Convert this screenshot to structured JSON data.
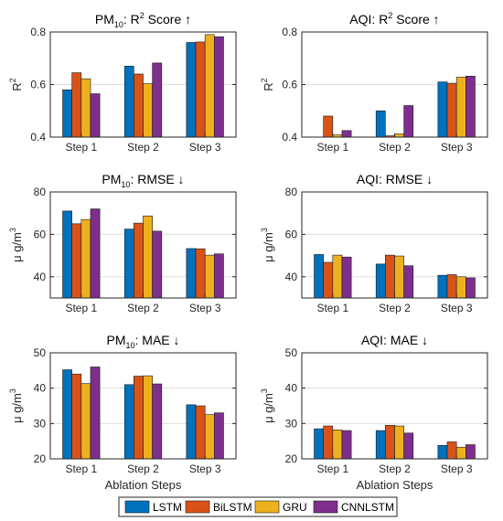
{
  "colors": {
    "LSTM": "#0072BD",
    "BiLSTM": "#D95319",
    "GRU": "#EDB120",
    "CNNLSTM": "#7E2F8E",
    "axis": "#262626",
    "grid": "#262626"
  },
  "legend": {
    "items": [
      "LSTM",
      "BiLSTM",
      "GRU",
      "CNNLSTM"
    ]
  },
  "chart_data": [
    {
      "type": "bar",
      "title": "PM10: R² Score ↑",
      "title_main": "PM",
      "title_sub": "10",
      "title_rest": ": R",
      "title_sup": "2",
      "title_end": " Score ↑",
      "ylabel": "R2",
      "ylabel_main": "R",
      "ylabel_sup": "2",
      "xlabel": "",
      "categories": [
        "Step 1",
        "Step 2",
        "Step 3"
      ],
      "ylim": [
        0.4,
        0.8
      ],
      "yticks": [
        0.4,
        0.6,
        0.8
      ],
      "ytick_labels": [
        "0.4",
        "0.6",
        "0.8"
      ],
      "series": [
        {
          "name": "LSTM",
          "values": [
            0.58,
            0.67,
            0.76
          ]
        },
        {
          "name": "BiLSTM",
          "values": [
            0.645,
            0.64,
            0.762
          ]
        },
        {
          "name": "GRU",
          "values": [
            0.622,
            0.603,
            0.79
          ]
        },
        {
          "name": "CNNLSTM",
          "values": [
            0.565,
            0.682,
            0.782
          ]
        }
      ]
    },
    {
      "type": "bar",
      "title": "AQI: R² Score ↑",
      "title_main": "AQI: R",
      "title_sub": "",
      "title_rest": "",
      "title_sup": "2",
      "title_end": " Score ↑",
      "ylabel": "R2",
      "ylabel_main": "R",
      "ylabel_sup": "2",
      "xlabel": "",
      "categories": [
        "Step 1",
        "Step 2",
        "Step 3"
      ],
      "ylim": [
        0.4,
        0.8
      ],
      "yticks": [
        0.4,
        0.6,
        0.8
      ],
      "ytick_labels": [
        "0.4",
        "0.6",
        "0.8"
      ],
      "series": [
        {
          "name": "LSTM",
          "values": [
            0.4,
            0.5,
            0.61
          ]
        },
        {
          "name": "BiLSTM",
          "values": [
            0.48,
            0.405,
            0.605
          ]
        },
        {
          "name": "GRU",
          "values": [
            0.408,
            0.412,
            0.628
          ]
        },
        {
          "name": "CNNLSTM",
          "values": [
            0.425,
            0.52,
            0.632
          ]
        }
      ]
    },
    {
      "type": "bar",
      "title": "PM10: RMSE ↓",
      "title_main": "PM",
      "title_sub": "10",
      "title_rest": ": RMSE ↓",
      "title_sup": "",
      "title_end": "",
      "ylabel": "μ g/m3",
      "ylabel_main": "μ g/m",
      "ylabel_sup": "3",
      "xlabel": "",
      "categories": [
        "Step 1",
        "Step 2",
        "Step 3"
      ],
      "ylim": [
        30,
        80
      ],
      "yticks": [
        40,
        60,
        80
      ],
      "ytick_labels": [
        "40",
        "60",
        "80"
      ],
      "series": [
        {
          "name": "LSTM",
          "values": [
            71,
            62.5,
            53.3
          ]
        },
        {
          "name": "BiLSTM",
          "values": [
            65,
            65.3,
            53.2
          ]
        },
        {
          "name": "GRU",
          "values": [
            67,
            68.7,
            50.2
          ]
        },
        {
          "name": "CNNLSTM",
          "values": [
            72,
            61.5,
            50.8
          ]
        }
      ]
    },
    {
      "type": "bar",
      "title": "AQI: RMSE ↓",
      "title_main": "AQI: RMSE ↓",
      "title_sub": "",
      "title_rest": "",
      "title_sup": "",
      "title_end": "",
      "ylabel": "μ g/m3",
      "ylabel_main": "μ g/m",
      "ylabel_sup": "3",
      "xlabel": "",
      "categories": [
        "Step 1",
        "Step 2",
        "Step 3"
      ],
      "ylim": [
        30,
        80
      ],
      "yticks": [
        40,
        60,
        80
      ],
      "ytick_labels": [
        "40",
        "60",
        "80"
      ],
      "series": [
        {
          "name": "LSTM",
          "values": [
            50.5,
            46,
            40.7
          ]
        },
        {
          "name": "BiLSTM",
          "values": [
            46.8,
            50.2,
            41
          ]
        },
        {
          "name": "GRU",
          "values": [
            50.2,
            49.8,
            40
          ]
        },
        {
          "name": "CNNLSTM",
          "values": [
            49.3,
            45.2,
            39.5
          ]
        }
      ]
    },
    {
      "type": "bar",
      "title": "PM10: MAE ↓",
      "title_main": "PM",
      "title_sub": "10",
      "title_rest": ": MAE ↓",
      "title_sup": "",
      "title_end": "",
      "ylabel": "μ g/m3",
      "ylabel_main": "μ g/m",
      "ylabel_sup": "3",
      "xlabel": "Ablation Steps",
      "categories": [
        "Step 1",
        "Step 2",
        "Step 3"
      ],
      "ylim": [
        20,
        50
      ],
      "yticks": [
        20,
        30,
        40,
        50
      ],
      "ytick_labels": [
        "20",
        "30",
        "40",
        "50"
      ],
      "series": [
        {
          "name": "LSTM",
          "values": [
            45.2,
            41,
            35.3
          ]
        },
        {
          "name": "BiLSTM",
          "values": [
            44,
            43.4,
            35
          ]
        },
        {
          "name": "GRU",
          "values": [
            41.3,
            43.5,
            32.5
          ]
        },
        {
          "name": "CNNLSTM",
          "values": [
            46,
            41.2,
            33
          ]
        }
      ]
    },
    {
      "type": "bar",
      "title": "AQI: MAE ↓",
      "title_main": "AQI: MAE ↓",
      "title_sub": "",
      "title_rest": "",
      "title_sup": "",
      "title_end": "",
      "ylabel": "μ g/m3",
      "ylabel_main": "μ g/m",
      "ylabel_sup": "3",
      "xlabel": "Ablation Steps",
      "categories": [
        "Step 1",
        "Step 2",
        "Step 3"
      ],
      "ylim": [
        20,
        50
      ],
      "yticks": [
        20,
        30,
        40,
        50
      ],
      "ytick_labels": [
        "20",
        "30",
        "40",
        "50"
      ],
      "series": [
        {
          "name": "LSTM",
          "values": [
            28.5,
            28,
            23.8
          ]
        },
        {
          "name": "BiLSTM",
          "values": [
            29.3,
            29.5,
            24.8
          ]
        },
        {
          "name": "GRU",
          "values": [
            28.2,
            29.3,
            23.3
          ]
        },
        {
          "name": "CNNLSTM",
          "values": [
            28,
            27.3,
            24
          ]
        }
      ]
    }
  ]
}
